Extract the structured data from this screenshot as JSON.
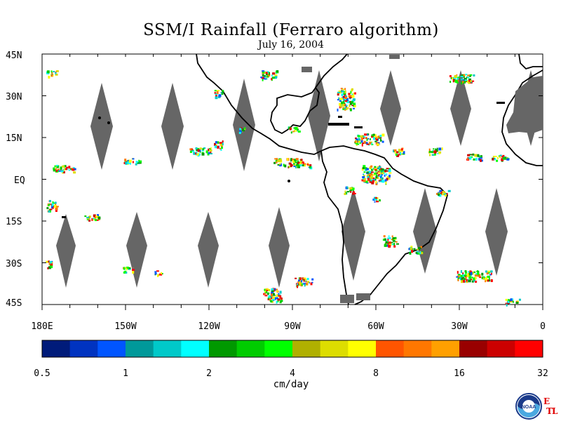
{
  "title": "SSM/I Rainfall (Ferraro algorithm)",
  "date": "July 16, 2004",
  "lat_labels": [
    "45N",
    "30N",
    "15N",
    "EQ",
    "15S",
    "30S",
    "45S"
  ],
  "lon_labels": [
    "180E",
    "150W",
    "120W",
    "90W",
    "60W",
    "30W",
    "0"
  ],
  "colorbar": {
    "colors": [
      "#001b7a",
      "#0033c0",
      "#0055ff",
      "#00999a",
      "#00c9c9",
      "#00ffff",
      "#009900",
      "#00cc00",
      "#00ff00",
      "#b0b000",
      "#dddd00",
      "#ffff00",
      "#ff5500",
      "#ff7700",
      "#ffa000",
      "#990000",
      "#cc0000",
      "#ff0000"
    ],
    "tick_labels": [
      "0.5",
      "1",
      "2",
      "4",
      "8",
      "16",
      "32"
    ],
    "units": "cm/day"
  },
  "colors": {
    "land": "#000000",
    "swath_gap": "#666666",
    "background": "#ffffff"
  },
  "logo": {
    "icon": "noaa-logo",
    "text": "NOAA",
    "side_text": [
      "E",
      "T",
      "L"
    ]
  }
}
